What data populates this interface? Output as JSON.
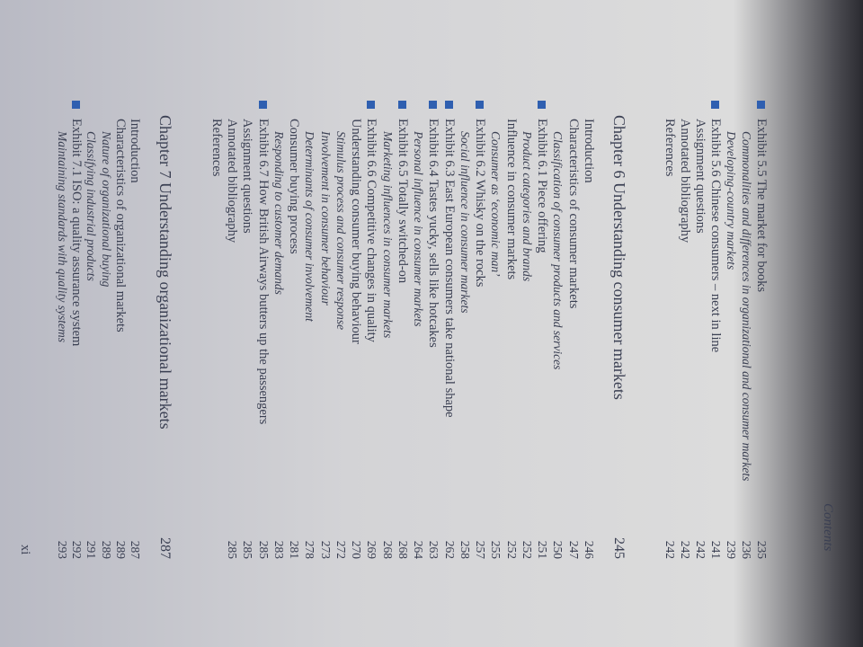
{
  "header": {
    "title": "Contents"
  },
  "footer": {
    "page_number": "xi"
  },
  "sections": [
    {
      "entries": [
        {
          "text": "Exhibit 5.5 The market for books",
          "page": 235
        },
        {
          "text": "Commonalities and differences in organizational and consumer markets",
          "page": 236
        },
        {
          "text": "Developing-country markets",
          "page": 239
        },
        {
          "text": "Exhibit 5.6 Chinese consumers – next in line",
          "page": 241
        },
        {
          "text": "Assignment questions",
          "page": 242
        },
        {
          "text": "Annotated bibliography",
          "page": 242
        },
        {
          "text": "References",
          "page": 242
        }
      ]
    },
    {
      "title": "Chapter 6 Understanding consumer markets",
      "page": 245,
      "entries": [
        {
          "text": "Introduction",
          "page": 246
        },
        {
          "text": "Characteristics of consumer markets",
          "page": 247
        },
        {
          "text": "Classification of consumer products and services",
          "page": 250
        },
        {
          "text": "Exhibit 6.1 Piece offering",
          "page": 251
        },
        {
          "text": "Product categories and brands",
          "page": 252
        },
        {
          "text": "Influence in consumer markets",
          "page": 252
        },
        {
          "text": "Consumer as ‘economic man’",
          "page": 255
        },
        {
          "text": "Exhibit 6.2 Whisky on the rocks",
          "page": 257
        },
        {
          "text": "Social influence in consumer markets",
          "page": 258
        },
        {
          "text": "Exhibit 6.3 East European consumers take national shape",
          "page": 262
        },
        {
          "text": "Exhibit 6.4 Tastes yucky, sells like hotcakes",
          "page": 263
        },
        {
          "text": "Personal influence in consumer markets",
          "page": 264
        },
        {
          "text": "Exhibit 6.5 Totally switched-on",
          "page": 268
        },
        {
          "text": "Marketing influences in consumer markets",
          "page": 268
        },
        {
          "text": "Exhibit 6.6 Competitive changes in quality",
          "page": 269
        },
        {
          "text": "Understanding consumer buying behaviour",
          "page": 270
        },
        {
          "text": "Stimulus process and consumer response",
          "page": 272
        },
        {
          "text": "Involvement in consumer behaviour",
          "page": 273
        },
        {
          "text": "Determinants of consumer involvement",
          "page": 278
        },
        {
          "text": "Consumer buying process",
          "page": 281
        },
        {
          "text": "Responding to customer demands",
          "page": 283
        },
        {
          "text": "Exhibit 6.7 How British Airways butters up the passengers",
          "page": 285
        },
        {
          "text": "Assignment questions",
          "page": 285
        },
        {
          "text": "Annotated bibliography",
          "page": 285
        },
        {
          "text": "References"
        }
      ]
    },
    {
      "title": "Chapter 7 Understanding organizational markets",
      "page": 287,
      "entries": [
        {
          "text": "Introduction",
          "page": 287
        },
        {
          "text": "Characteristics of organizational markets",
          "page": 289
        },
        {
          "text": "Nature of organizational buying",
          "page": 289
        },
        {
          "text": "Classifying industrial products",
          "page": 291
        },
        {
          "text": "Exhibit 7.1 ISO: a quality assurance system",
          "page": 292
        },
        {
          "text": "Maintaining standards with quality systems",
          "page": 293
        }
      ]
    }
  ]
}
